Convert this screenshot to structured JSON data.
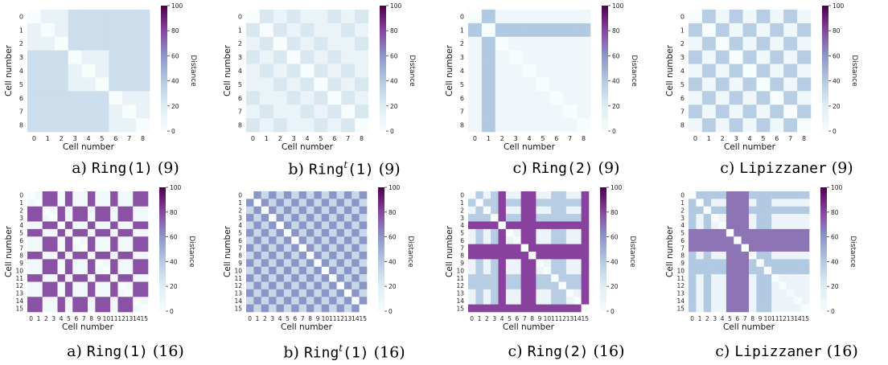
{
  "figure": {
    "xlabel": "Cell number",
    "ylabel": "Cell number",
    "colorbar_label": "Distance",
    "colorbar_ticks": [
      "0",
      "20",
      "40",
      "60",
      "80",
      "100"
    ],
    "colors": {
      "low": "#f7fcfd",
      "mid": "#8c96c6",
      "high": "#4d004b"
    }
  },
  "chart_data": [
    {
      "type": "heatmap",
      "n": 9,
      "pattern": "ring1",
      "caption": {
        "prefix": "a) ",
        "method": "Ring",
        "sup": "",
        "args": "(1)",
        "suffix": " (9)"
      },
      "xlabel": "Cell number",
      "ylabel": "Cell number",
      "colorbar_label": "Distance",
      "zlim": [
        0,
        100
      ],
      "levels": {
        "low": 8,
        "high": 20
      }
    },
    {
      "type": "heatmap",
      "n": 9,
      "pattern": "ringt1",
      "caption": {
        "prefix": "b) ",
        "method": "Ring",
        "sup": "t",
        "args": "(1)",
        "suffix": " (9)"
      },
      "xlabel": "Cell number",
      "ylabel": "Cell number",
      "colorbar_label": "Distance",
      "zlim": [
        0,
        100
      ],
      "levels": {
        "low": 7,
        "high": 15
      }
    },
    {
      "type": "heatmap",
      "n": 9,
      "pattern": "ring2",
      "caption": {
        "prefix": "c) ",
        "method": "Ring",
        "sup": "",
        "args": "(2)",
        "suffix": " (9)"
      },
      "xlabel": "Cell number",
      "ylabel": "Cell number",
      "colorbar_label": "Distance",
      "zlim": [
        0,
        100
      ],
      "levels": {
        "low": 4,
        "high": 30
      }
    },
    {
      "type": "heatmap",
      "n": 9,
      "pattern": "lip9",
      "caption": {
        "prefix": "c) ",
        "method": "Lipizzaner",
        "sup": "",
        "args": "",
        "suffix": " (9)"
      },
      "xlabel": "Cell number",
      "ylabel": "Cell number",
      "colorbar_label": "Distance",
      "zlim": [
        0,
        100
      ],
      "levels": {
        "low": 4,
        "high": 28
      }
    },
    {
      "type": "heatmap",
      "n": 16,
      "pattern": "ring1",
      "caption": {
        "prefix": "a) ",
        "method": "Ring",
        "sup": "",
        "args": "(1)",
        "suffix": " (16)"
      },
      "xlabel": "Cell number",
      "ylabel": "Cell number",
      "colorbar_label": "Distance",
      "zlim": [
        0,
        100
      ],
      "levels": {
        "low": 3,
        "high": 70
      }
    },
    {
      "type": "heatmap",
      "n": 16,
      "pattern": "ringt1",
      "caption": {
        "prefix": "b) ",
        "method": "Ring",
        "sup": "t",
        "args": "(1)",
        "suffix": " (16)"
      },
      "xlabel": "Cell number",
      "ylabel": "Cell number",
      "colorbar_label": "Distance",
      "zlim": [
        0,
        100
      ],
      "levels": {
        "low": 22,
        "high": 50
      }
    },
    {
      "type": "heatmap",
      "n": 16,
      "pattern": "ring2_16",
      "caption": {
        "prefix": "c) ",
        "method": "Ring",
        "sup": "",
        "args": "(2)",
        "suffix": " (16)"
      },
      "xlabel": "Cell number",
      "ylabel": "Cell number",
      "colorbar_label": "Distance",
      "zlim": [
        0,
        100
      ],
      "levels": {
        "low": 6,
        "mid": 28,
        "high": 75
      }
    },
    {
      "type": "heatmap",
      "n": 16,
      "pattern": "lip16",
      "caption": {
        "prefix": "c) ",
        "method": "Lipizzaner",
        "sup": "",
        "args": "",
        "suffix": " (16)"
      },
      "xlabel": "Cell number",
      "ylabel": "Cell number",
      "colorbar_label": "Distance",
      "zlim": [
        0,
        100
      ],
      "levels": {
        "low": 6,
        "mid": 30,
        "high": 60
      }
    }
  ]
}
